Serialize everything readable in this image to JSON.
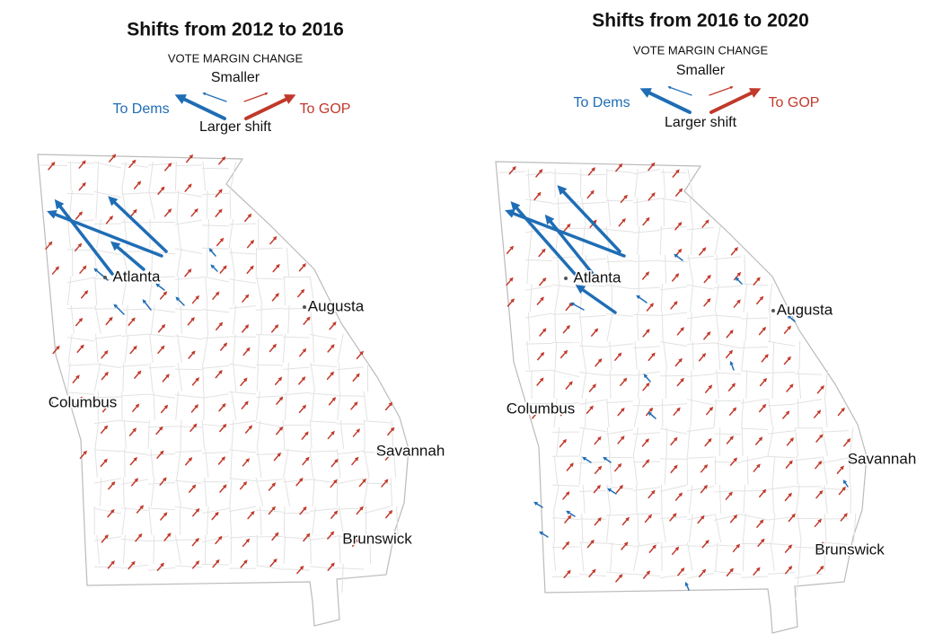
{
  "maps": [
    {
      "title": "Shifts from 2012 to 2016",
      "legend": {
        "heading": "VOTE MARGIN CHANGE",
        "smaller": "Smaller",
        "larger": "Larger shift",
        "dems": "To Dems",
        "gop": "To GOP"
      },
      "cities": [
        "Atlanta",
        "Augusta",
        "Columbus",
        "Savannah",
        "Brunswick"
      ]
    },
    {
      "title": "Shifts from 2016 to 2020",
      "legend": {
        "heading": "VOTE MARGIN CHANGE",
        "smaller": "Smaller",
        "larger": "Larger shift",
        "dems": "To Dems",
        "gop": "To GOP"
      },
      "cities": [
        "Atlanta",
        "Augusta",
        "Columbus",
        "Savannah",
        "Brunswick"
      ]
    }
  ]
}
